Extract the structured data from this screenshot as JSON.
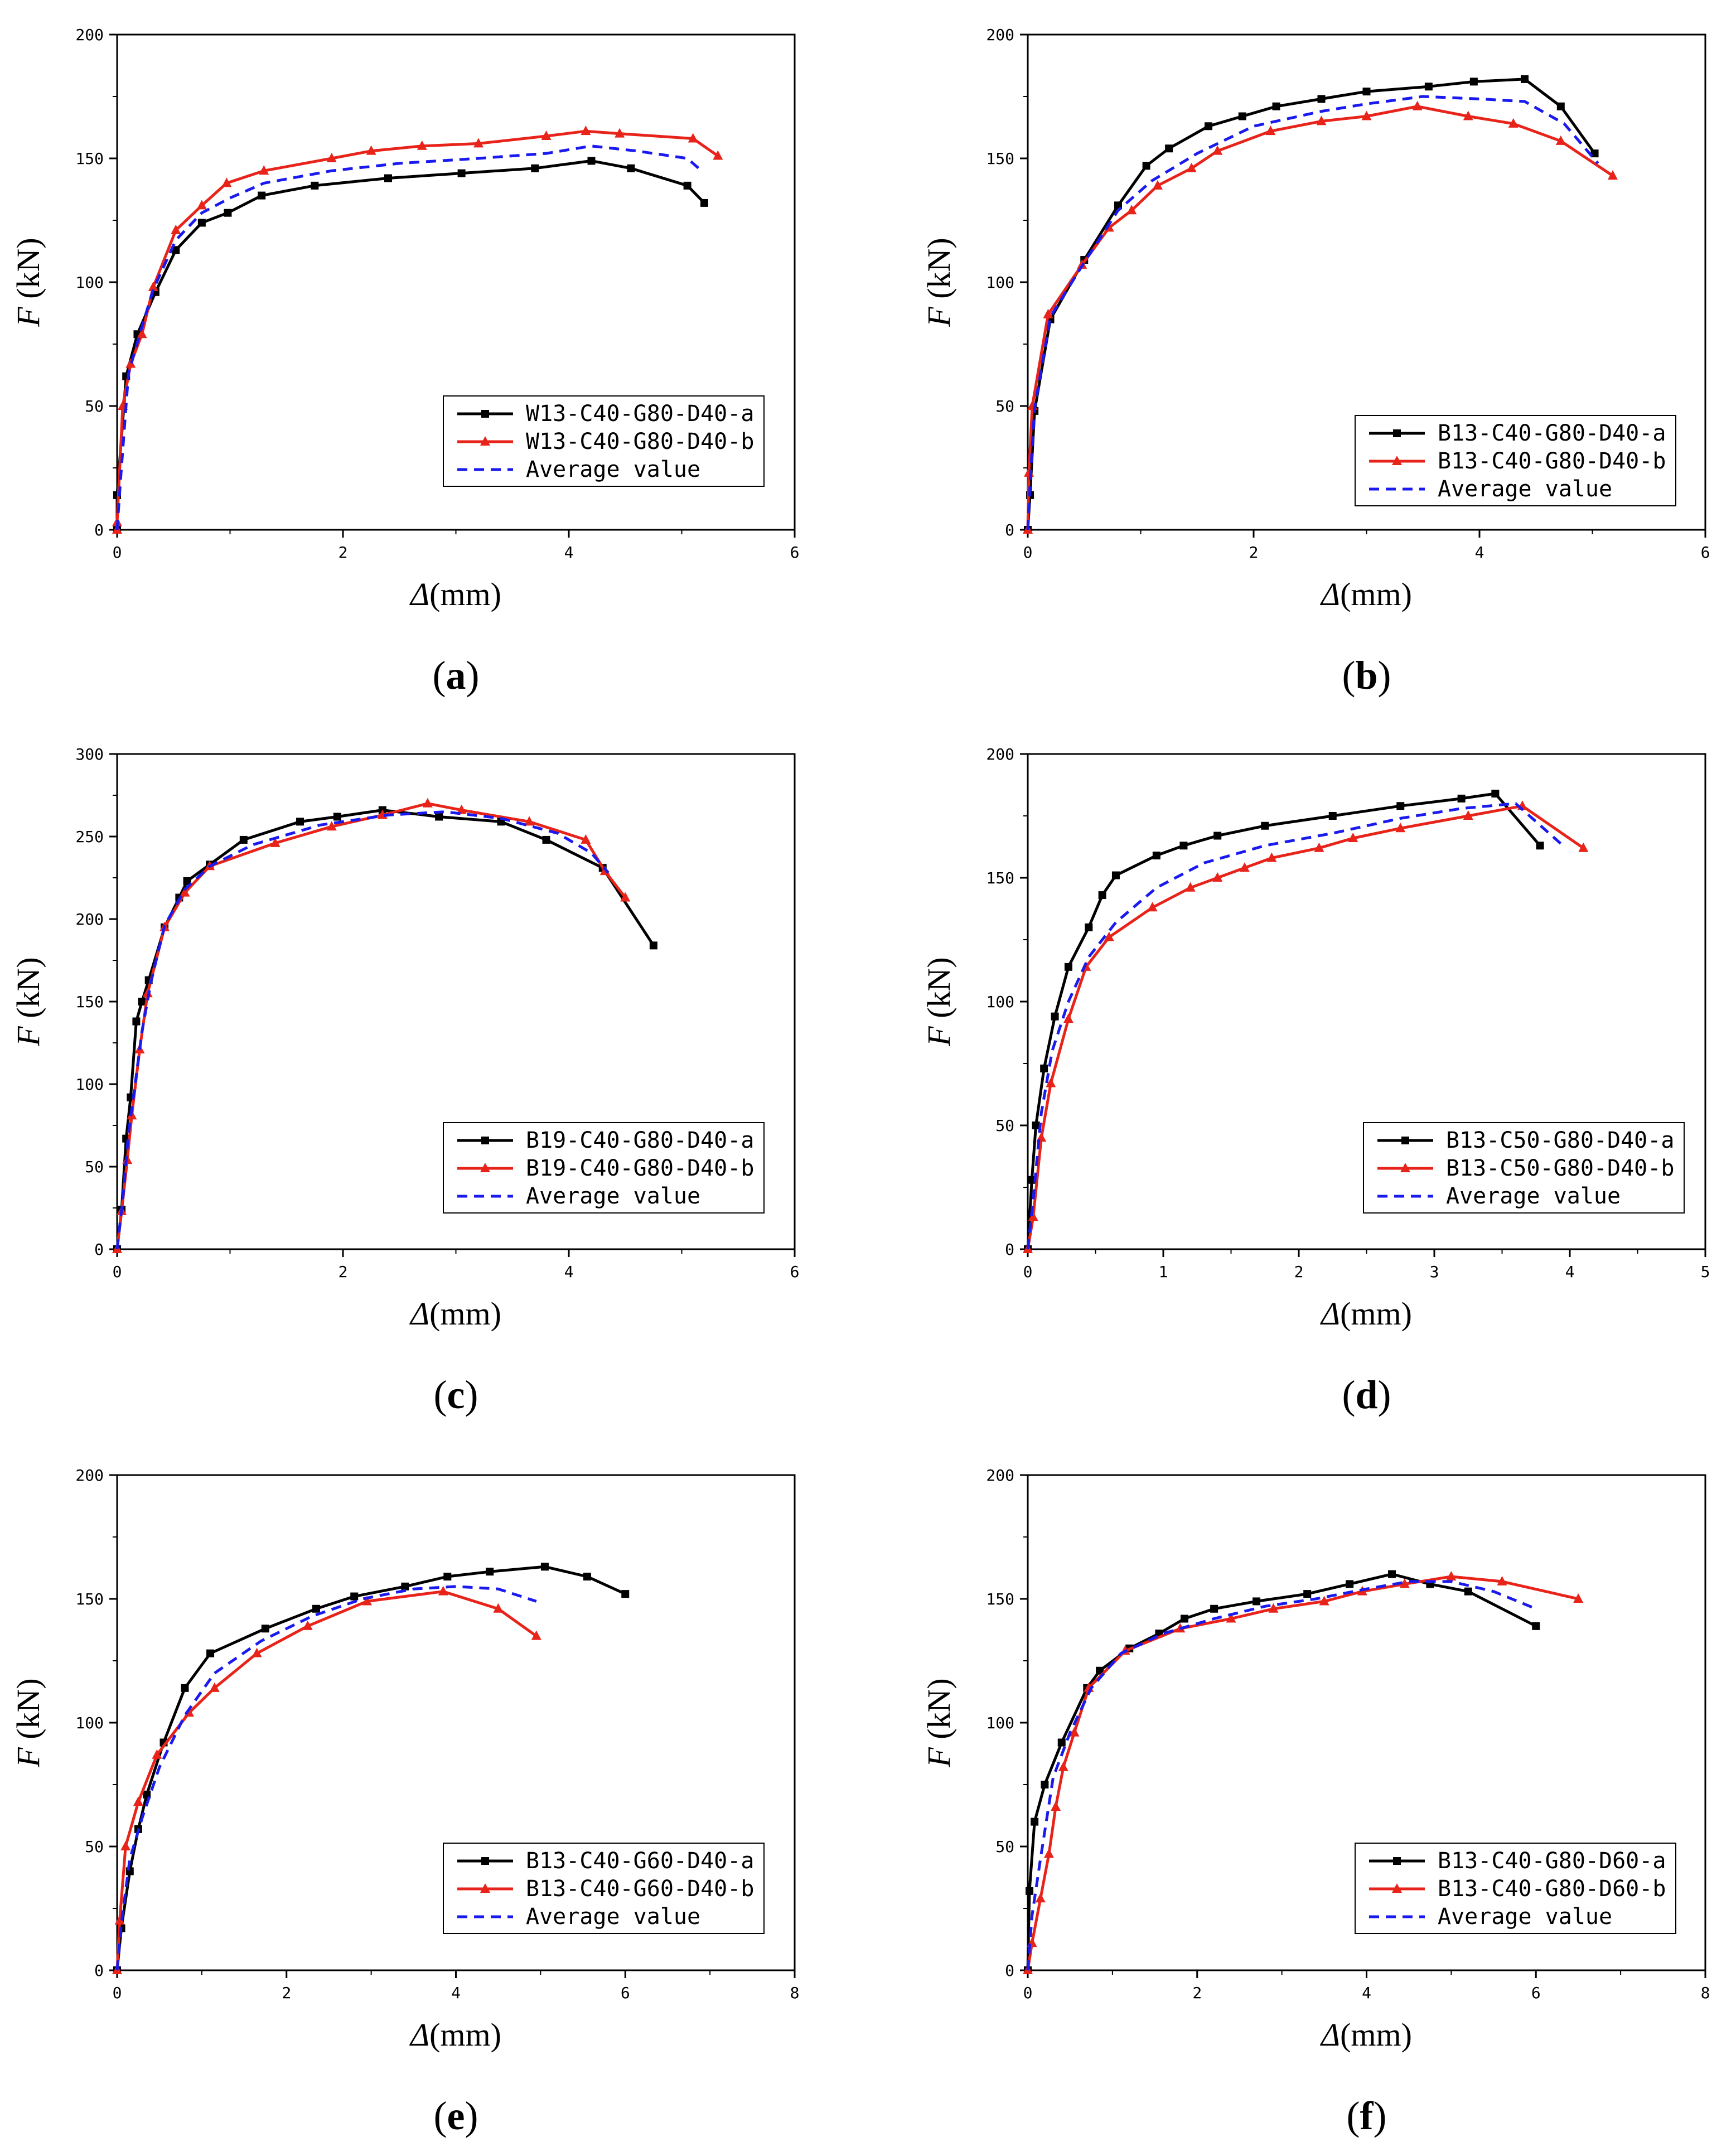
{
  "figure": {
    "chart_data": [
      {
        "type": "line",
        "panel": "a",
        "label_prefix": "(",
        "label_suffix": ")",
        "xlabel_sym": "Δ",
        "xlabel_unit": "(mm)",
        "ylabel_sym": "F",
        "ylabel_unit": " (kN)",
        "xlim": [
          0,
          6
        ],
        "ylim": [
          0,
          200
        ],
        "xticks": [
          0,
          2,
          4,
          6
        ],
        "yticks": [
          0,
          50,
          100,
          150,
          200
        ],
        "legend_position": "bottom-right",
        "series": [
          {
            "name": "W13-C40-G80-D40-a",
            "color": "#000000",
            "marker": "square",
            "dash": "solid",
            "x": [
              0,
              0,
              0.08,
              0.18,
              0.34,
              0.52,
              0.75,
              0.98,
              1.28,
              1.75,
              2.4,
              3.05,
              3.7,
              4.2,
              4.55,
              5.05,
              5.2
            ],
            "y": [
              0,
              14,
              62,
              79,
              96,
              113,
              124,
              128,
              135,
              139,
              142,
              144,
              146,
              149,
              146,
              139,
              132
            ]
          },
          {
            "name": "W13-C40-G80-D40-b",
            "color": "#e8231a",
            "marker": "triangle",
            "dash": "solid",
            "x": [
              0,
              0,
              0.05,
              0.12,
              0.22,
              0.32,
              0.52,
              0.75,
              0.97,
              1.3,
              1.9,
              2.25,
              2.7,
              3.2,
              3.8,
              4.15,
              4.45,
              5.1,
              5.32
            ],
            "y": [
              0,
              3,
              50,
              67,
              79,
              98,
              121,
              131,
              140,
              145,
              150,
              153,
              155,
              156,
              159,
              161,
              160,
              158,
              151
            ]
          },
          {
            "name": "Average value",
            "color": "#1a1aee",
            "marker": "none",
            "dash": "dashed",
            "x": [
              0,
              0.03,
              0.1,
              0.2,
              0.32,
              0.52,
              0.75,
              1.0,
              1.3,
              1.9,
              2.5,
              3.2,
              3.8,
              4.2,
              4.6,
              5.05,
              5.15
            ],
            "y": [
              0,
              20,
              63,
              79,
              97,
              117,
              128,
              134,
              140,
              145,
              148,
              150,
              152,
              155,
              153,
              150,
              146
            ]
          }
        ]
      },
      {
        "type": "line",
        "panel": "b",
        "label_prefix": "(",
        "label_suffix": ")",
        "xlabel_sym": "Δ",
        "xlabel_unit": "(mm)",
        "ylabel_sym": "F",
        "ylabel_unit": " (kN)",
        "xlim": [
          0,
          6
        ],
        "ylim": [
          0,
          200
        ],
        "xticks": [
          0,
          2,
          4,
          6
        ],
        "yticks": [
          0,
          50,
          100,
          150,
          200
        ],
        "legend_position": "bottom-right",
        "series": [
          {
            "name": "B13-C40-G80-D40-a",
            "color": "#000000",
            "marker": "square",
            "dash": "solid",
            "x": [
              0,
              0.02,
              0.06,
              0.2,
              0.5,
              0.8,
              1.05,
              1.25,
              1.6,
              1.9,
              2.2,
              2.6,
              3.0,
              3.55,
              3.95,
              4.4,
              4.72,
              5.02
            ],
            "y": [
              0,
              14,
              48,
              85,
              109,
              131,
              147,
              154,
              163,
              167,
              171,
              174,
              177,
              179,
              181,
              182,
              171,
              152
            ]
          },
          {
            "name": "B13-C40-G80-D40-b",
            "color": "#e8231a",
            "marker": "triangle",
            "dash": "solid",
            "x": [
              0,
              0.01,
              0.04,
              0.18,
              0.48,
              0.72,
              0.92,
              1.15,
              1.45,
              1.68,
              2.15,
              2.6,
              3.0,
              3.45,
              3.9,
              4.3,
              4.72,
              5.18
            ],
            "y": [
              0,
              23,
              50,
              87,
              107,
              122,
              129,
              139,
              146,
              153,
              161,
              165,
              167,
              171,
              167,
              164,
              157,
              143
            ]
          },
          {
            "name": "Average value",
            "color": "#1a1aee",
            "marker": "none",
            "dash": "dashed",
            "x": [
              0,
              0.02,
              0.06,
              0.2,
              0.5,
              0.8,
              1.1,
              1.5,
              2.0,
              2.6,
              3.0,
              3.5,
              4.0,
              4.4,
              4.75,
              5.05
            ],
            "y": [
              0,
              18,
              49,
              86,
              108,
              129,
              141,
              152,
              163,
              169,
              172,
              175,
              174,
              173,
              164,
              148
            ]
          }
        ]
      },
      {
        "type": "line",
        "panel": "c",
        "label_prefix": "(",
        "label_suffix": ")",
        "xlabel_sym": "Δ",
        "xlabel_unit": "(mm)",
        "ylabel_sym": "F",
        "ylabel_unit": " (kN)",
        "xlim": [
          0,
          6
        ],
        "ylim": [
          0,
          300
        ],
        "xticks": [
          0,
          2,
          4,
          6
        ],
        "yticks": [
          0,
          50,
          100,
          150,
          200,
          250,
          300
        ],
        "legend_position": "bottom-right",
        "series": [
          {
            "name": "B19-C40-G80-D40-a",
            "color": "#000000",
            "marker": "square",
            "dash": "solid",
            "x": [
              0,
              0.04,
              0.08,
              0.12,
              0.17,
              0.22,
              0.28,
              0.42,
              0.55,
              0.62,
              0.82,
              1.12,
              1.62,
              1.95,
              2.35,
              2.85,
              3.4,
              3.8,
              4.3,
              4.75
            ],
            "y": [
              0,
              24,
              67,
              92,
              138,
              150,
              163,
              195,
              213,
              223,
              233,
              248,
              259,
              262,
              266,
              262,
              259,
              248,
              231,
              184
            ]
          },
          {
            "name": "B19-C40-G80-D40-b",
            "color": "#e8231a",
            "marker": "triangle",
            "dash": "solid",
            "x": [
              0,
              0.04,
              0.09,
              0.13,
              0.2,
              0.27,
              0.42,
              0.6,
              0.82,
              1.4,
              1.9,
              2.35,
              2.75,
              3.05,
              3.65,
              4.15,
              4.32,
              4.5
            ],
            "y": [
              0,
              23,
              54,
              81,
              121,
              155,
              195,
              216,
              232,
              246,
              256,
              263,
              270,
              266,
              259,
              248,
              229,
              213
            ]
          },
          {
            "name": "Average value",
            "color": "#1a1aee",
            "marker": "none",
            "dash": "dashed",
            "x": [
              0,
              0.05,
              0.1,
              0.15,
              0.22,
              0.3,
              0.42,
              0.6,
              0.82,
              1.2,
              1.8,
              2.4,
              2.9,
              3.4,
              3.9,
              4.2,
              4.35
            ],
            "y": [
              0,
              30,
              70,
              95,
              132,
              162,
              196,
              218,
              232,
              245,
              257,
              263,
              265,
              261,
              252,
              240,
              228
            ]
          }
        ]
      },
      {
        "type": "line",
        "panel": "d",
        "label_prefix": "(",
        "label_suffix": ")",
        "xlabel_sym": "Δ",
        "xlabel_unit": "(mm)",
        "ylabel_sym": "F",
        "ylabel_unit": " (kN)",
        "xlim": [
          0,
          5
        ],
        "ylim": [
          0,
          200
        ],
        "xticks": [
          0,
          1,
          2,
          3,
          4,
          5
        ],
        "yticks": [
          0,
          50,
          100,
          150,
          200
        ],
        "legend_position": "bottom-right",
        "series": [
          {
            "name": "B13-C50-G80-D40-a",
            "color": "#000000",
            "marker": "square",
            "dash": "solid",
            "x": [
              0,
              0.03,
              0.06,
              0.12,
              0.2,
              0.3,
              0.45,
              0.55,
              0.65,
              0.95,
              1.15,
              1.4,
              1.75,
              2.25,
              2.75,
              3.2,
              3.45,
              3.78
            ],
            "y": [
              0,
              28,
              50,
              73,
              94,
              114,
              130,
              143,
              151,
              159,
              163,
              167,
              171,
              175,
              179,
              182,
              184,
              163
            ]
          },
          {
            "name": "B13-C50-G80-D40-b",
            "color": "#e8231a",
            "marker": "triangle",
            "dash": "solid",
            "x": [
              0,
              0.04,
              0.1,
              0.17,
              0.3,
              0.43,
              0.6,
              0.92,
              1.2,
              1.4,
              1.6,
              1.8,
              2.15,
              2.4,
              2.75,
              3.25,
              3.65,
              4.1
            ],
            "y": [
              0,
              13,
              45,
              67,
              93,
              114,
              126,
              138,
              146,
              150,
              154,
              158,
              162,
              166,
              170,
              175,
              179,
              162
            ]
          },
          {
            "name": "Average value",
            "color": "#1a1aee",
            "marker": "none",
            "dash": "dashed",
            "x": [
              0,
              0.04,
              0.1,
              0.18,
              0.3,
              0.45,
              0.65,
              0.95,
              1.3,
              1.75,
              2.25,
              2.75,
              3.2,
              3.6,
              3.95
            ],
            "y": [
              0,
              20,
              55,
              80,
              100,
              118,
              132,
              146,
              156,
              163,
              168,
              174,
              178,
              180,
              163
            ]
          }
        ]
      },
      {
        "type": "line",
        "panel": "e",
        "label_prefix": "(",
        "label_suffix": ")",
        "xlabel_sym": "Δ",
        "xlabel_unit": "(mm)",
        "ylabel_sym": "F",
        "ylabel_unit": " (kN)",
        "xlim": [
          0,
          8
        ],
        "ylim": [
          0,
          200
        ],
        "xticks": [
          0,
          2,
          4,
          6,
          8
        ],
        "yticks": [
          0,
          50,
          100,
          150,
          200
        ],
        "legend_position": "bottom-right",
        "series": [
          {
            "name": "B13-C40-G60-D40-a",
            "color": "#000000",
            "marker": "square",
            "dash": "solid",
            "x": [
              0,
              0.05,
              0.15,
              0.25,
              0.35,
              0.55,
              0.8,
              1.1,
              1.75,
              2.35,
              2.8,
              3.4,
              3.9,
              4.4,
              5.05,
              5.55,
              6.0
            ],
            "y": [
              0,
              17,
              40,
              57,
              71,
              92,
              114,
              128,
              138,
              146,
              151,
              155,
              159,
              161,
              163,
              159,
              152
            ]
          },
          {
            "name": "B13-C40-G60-D40-b",
            "color": "#e8231a",
            "marker": "triangle",
            "dash": "solid",
            "x": [
              0,
              0.03,
              0.1,
              0.25,
              0.47,
              0.85,
              1.15,
              1.65,
              2.25,
              2.95,
              3.85,
              4.5,
              4.95
            ],
            "y": [
              0,
              20,
              50,
              68,
              87,
              104,
              114,
              128,
              139,
              149,
              153,
              146,
              135
            ]
          },
          {
            "name": "Average value",
            "color": "#1a1aee",
            "marker": "none",
            "dash": "dashed",
            "x": [
              0,
              0.05,
              0.15,
              0.3,
              0.5,
              0.8,
              1.15,
              1.7,
              2.3,
              2.9,
              3.5,
              4.0,
              4.5,
              4.95
            ],
            "y": [
              0,
              19,
              45,
              62,
              82,
              103,
              120,
              133,
              143,
              150,
              154,
              155,
              154,
              149
            ]
          }
        ]
      },
      {
        "type": "line",
        "panel": "f",
        "label_prefix": "(",
        "label_suffix": ")",
        "xlabel_sym": "Δ",
        "xlabel_unit": "(mm)",
        "ylabel_sym": "F",
        "ylabel_unit": " (kN)",
        "xlim": [
          0,
          8
        ],
        "ylim": [
          0,
          200
        ],
        "xticks": [
          0,
          2,
          4,
          6,
          8
        ],
        "yticks": [
          0,
          50,
          100,
          150,
          200
        ],
        "legend_position": "bottom-right",
        "series": [
          {
            "name": "B13-C40-G80-D60-a",
            "color": "#000000",
            "marker": "square",
            "dash": "solid",
            "x": [
              0,
              0.02,
              0.08,
              0.2,
              0.4,
              0.7,
              0.85,
              1.2,
              1.55,
              1.85,
              2.2,
              2.7,
              3.3,
              3.8,
              4.3,
              4.75,
              5.2,
              6.0
            ],
            "y": [
              0,
              32,
              60,
              75,
              92,
              114,
              121,
              130,
              136,
              142,
              146,
              149,
              152,
              156,
              160,
              156,
              153,
              139
            ]
          },
          {
            "name": "B13-C40-G80-D60-b",
            "color": "#e8231a",
            "marker": "triangle",
            "dash": "solid",
            "x": [
              0,
              0.05,
              0.15,
              0.25,
              0.33,
              0.42,
              0.55,
              0.72,
              1.15,
              1.8,
              2.4,
              2.9,
              3.5,
              3.95,
              4.45,
              5.0,
              5.6,
              6.5
            ],
            "y": [
              0,
              11,
              29,
              47,
              66,
              82,
              96,
              114,
              129,
              138,
              142,
              146,
              149,
              153,
              156,
              159,
              157,
              150
            ]
          },
          {
            "name": "Average value",
            "color": "#1a1aee",
            "marker": "none",
            "dash": "dashed",
            "x": [
              0,
              0.05,
              0.15,
              0.3,
              0.5,
              0.75,
              1.1,
              1.6,
              2.2,
              2.8,
              3.4,
              4.0,
              4.5,
              5.0,
              5.5,
              6.0
            ],
            "y": [
              0,
              22,
              45,
              78,
              96,
              114,
              128,
              136,
              142,
              147,
              150,
              154,
              157,
              157,
              153,
              146
            ]
          }
        ]
      }
    ]
  }
}
